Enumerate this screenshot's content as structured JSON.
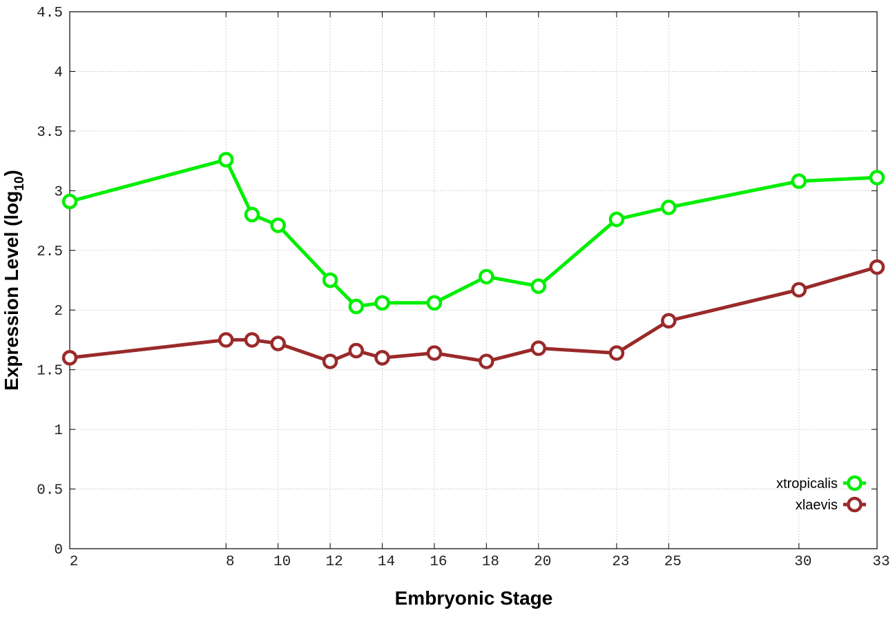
{
  "chart_data": {
    "type": "line",
    "xlabel": "Embryonic Stage",
    "ylabel": "Expression Level (log",
    "ylabel_subscript": "10",
    "ylabel_close": ")",
    "x_ticks": [
      2,
      8,
      10,
      12,
      14,
      16,
      18,
      20,
      23,
      25,
      30,
      33
    ],
    "x_tick_labels": [
      "2",
      "8",
      "10",
      "12",
      "14",
      "16",
      "18",
      "20",
      "23",
      "25",
      "30",
      "33"
    ],
    "y_ticks": [
      0,
      0.5,
      1,
      1.5,
      2,
      2.5,
      3,
      3.5,
      4,
      4.5
    ],
    "y_tick_labels": [
      "0",
      "0.5",
      "1",
      "1.5",
      "2",
      "2.5",
      "3",
      "3.5",
      "4",
      "4.5"
    ],
    "xlim": [
      2,
      33
    ],
    "ylim": [
      0,
      4.5
    ],
    "grid": true,
    "legend_position": "bottom-right",
    "series": [
      {
        "name": "xtropicalis",
        "color": "#00ee00",
        "x": [
          2,
          8,
          9,
          10,
          12,
          13,
          14,
          16,
          18,
          20,
          23,
          25,
          30,
          33
        ],
        "y": [
          2.91,
          3.26,
          2.8,
          2.71,
          2.25,
          2.03,
          2.06,
          2.06,
          2.28,
          2.2,
          2.76,
          2.86,
          3.08,
          3.11
        ]
      },
      {
        "name": "xlaevis",
        "color": "#9a2a2a",
        "x": [
          2,
          8,
          9,
          10,
          12,
          13,
          14,
          16,
          18,
          20,
          23,
          25,
          30,
          33
        ],
        "y": [
          1.6,
          1.75,
          1.75,
          1.72,
          1.57,
          1.66,
          1.6,
          1.64,
          1.57,
          1.68,
          1.64,
          1.91,
          2.17,
          2.36
        ]
      }
    ]
  }
}
